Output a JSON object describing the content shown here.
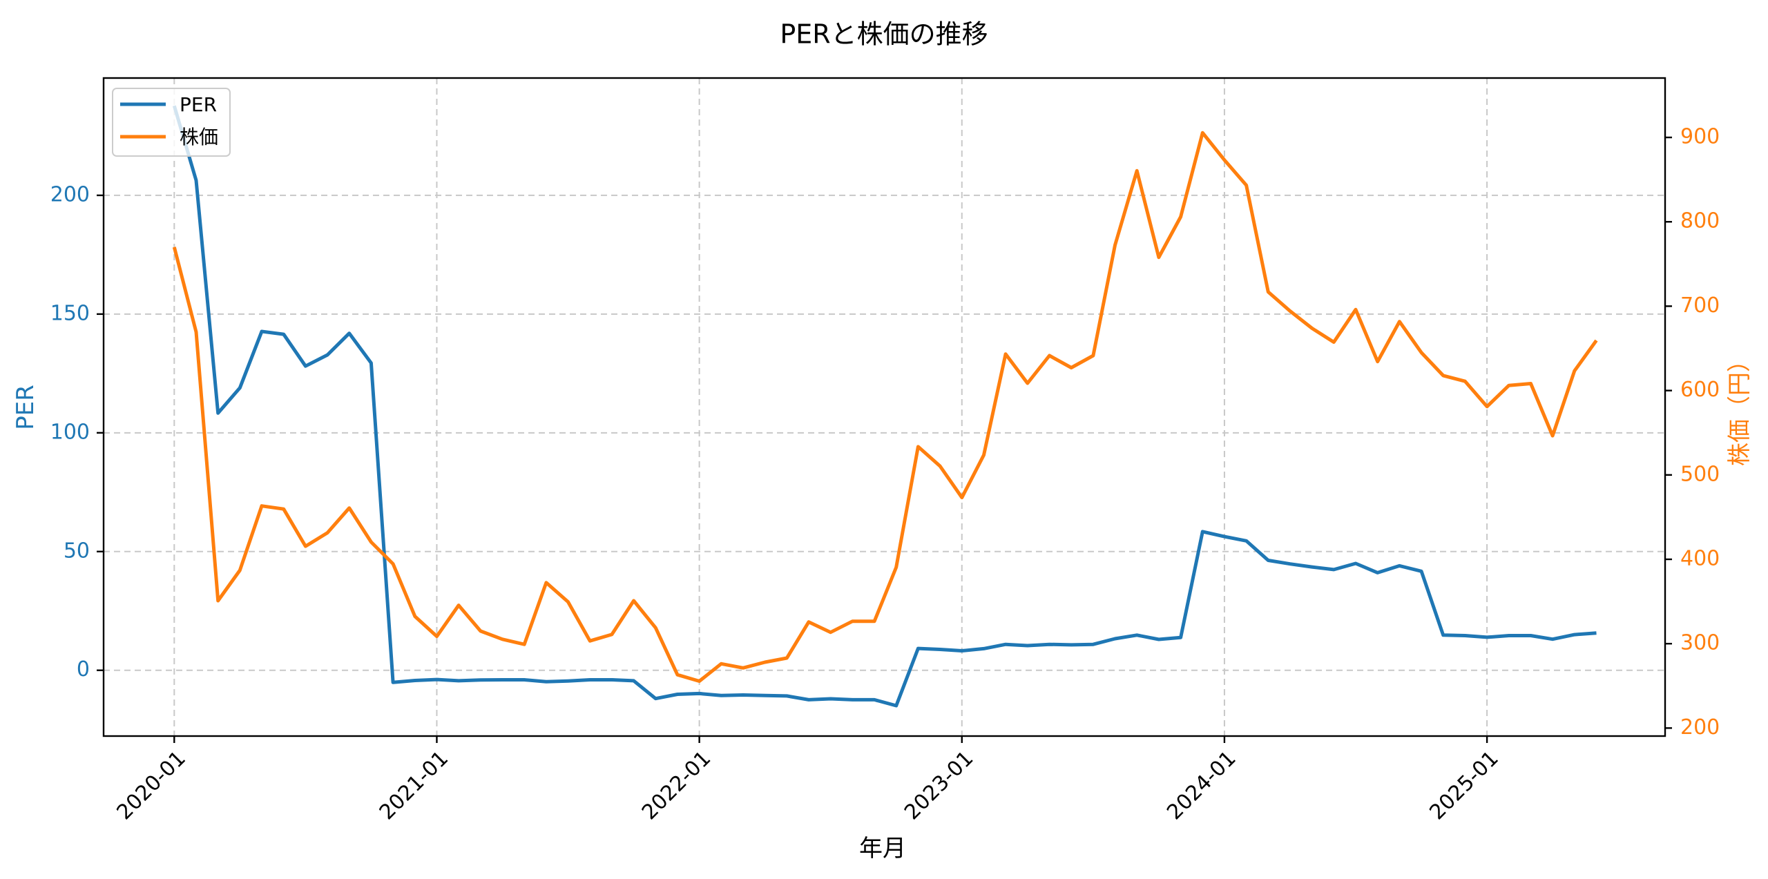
{
  "chart_data": {
    "type": "line",
    "title": "PERと株価の推移",
    "xlabel": "年月",
    "ylabel_left": "PER",
    "ylabel_right": "株価（円）",
    "left_axis": {
      "lim": [
        -27.7,
        249.4
      ],
      "ticks": [
        0,
        50,
        100,
        150,
        200
      ],
      "color": "#1f77b4"
    },
    "right_axis": {
      "lim": [
        190.5,
        970.4
      ],
      "ticks": [
        200,
        300,
        400,
        500,
        600,
        700,
        800,
        900
      ],
      "color": "#ff7f0e"
    },
    "x_ticks": [
      "2020-01",
      "2021-01",
      "2022-01",
      "2023-01",
      "2024-01",
      "2025-01"
    ],
    "x_tick_index": [
      0,
      12,
      24,
      36,
      48,
      60
    ],
    "grid": true,
    "legend_position": "upper left",
    "x": [
      "2020-01",
      "2020-02",
      "2020-03",
      "2020-04",
      "2020-05",
      "2020-06",
      "2020-07",
      "2020-08",
      "2020-09",
      "2020-10",
      "2020-11",
      "2020-12",
      "2021-01",
      "2021-02",
      "2021-03",
      "2021-04",
      "2021-05",
      "2021-06",
      "2021-07",
      "2021-08",
      "2021-09",
      "2021-10",
      "2021-11",
      "2021-12",
      "2022-01",
      "2022-02",
      "2022-03",
      "2022-04",
      "2022-05",
      "2022-06",
      "2022-07",
      "2022-08",
      "2022-09",
      "2022-10",
      "2022-11",
      "2022-12",
      "2023-01",
      "2023-02",
      "2023-03",
      "2023-04",
      "2023-05",
      "2023-06",
      "2023-07",
      "2023-08",
      "2023-09",
      "2023-10",
      "2023-11",
      "2023-12",
      "2024-01",
      "2024-02",
      "2024-03",
      "2024-04",
      "2024-05",
      "2024-06",
      "2024-07",
      "2024-08",
      "2024-09",
      "2024-10",
      "2024-11",
      "2024-12",
      "2025-01",
      "2025-02",
      "2025-03",
      "2025-04",
      "2025-05",
      "2025-06"
    ],
    "series": [
      {
        "name": "PER",
        "axis": "left",
        "color": "#1f77b4",
        "values": [
          237.7,
          206.3,
          108.3,
          118.9,
          142.7,
          141.5,
          128.1,
          132.8,
          141.9,
          129.4,
          -5.1,
          -4.3,
          -3.9,
          -4.4,
          -4.1,
          -4.0,
          -4.0,
          -4.8,
          -4.5,
          -4.0,
          -4.0,
          -4.4,
          -11.9,
          -10.1,
          -9.8,
          -10.6,
          -10.4,
          -10.6,
          -10.8,
          -12.4,
          -12.0,
          -12.4,
          -12.4,
          -14.9,
          9.2,
          8.8,
          8.2,
          9.1,
          10.9,
          10.4,
          10.9,
          10.7,
          10.9,
          13.3,
          14.8,
          13.0,
          13.8,
          58.4,
          56.3,
          54.5,
          46.3,
          44.8,
          43.5,
          42.4,
          45.0,
          41.1,
          44.0,
          41.7,
          14.8,
          14.6,
          13.9,
          14.6,
          14.6,
          13.1,
          15.0,
          15.7
        ]
      },
      {
        "name": "株価",
        "axis": "right",
        "color": "#ff7f0e",
        "values": [
          770.0,
          669.5,
          350.9,
          386.9,
          463.3,
          459.6,
          415.5,
          431.4,
          460.8,
          420.5,
          394.6,
          332.4,
          308.7,
          345.5,
          315.0,
          305.2,
          299.2,
          372.3,
          349.6,
          303.3,
          310.9,
          350.9,
          318.8,
          263.2,
          255.6,
          276.2,
          271.3,
          278.1,
          283.0,
          325.8,
          313.5,
          326.6,
          326.6,
          390.6,
          533.5,
          510.5,
          473.2,
          523.6,
          643.3,
          608.7,
          641.4,
          627.1,
          641.4,
          772.3,
          860.5,
          757.9,
          805.9,
          905.5,
          873.3,
          843.3,
          716.9,
          694.2,
          673.8,
          657.4,
          696.0,
          634.3,
          681.8,
          645.0,
          617.8,
          611.0,
          581.0,
          606.1,
          608.3,
          546.4,
          623.3,
          659.3
        ]
      }
    ]
  }
}
